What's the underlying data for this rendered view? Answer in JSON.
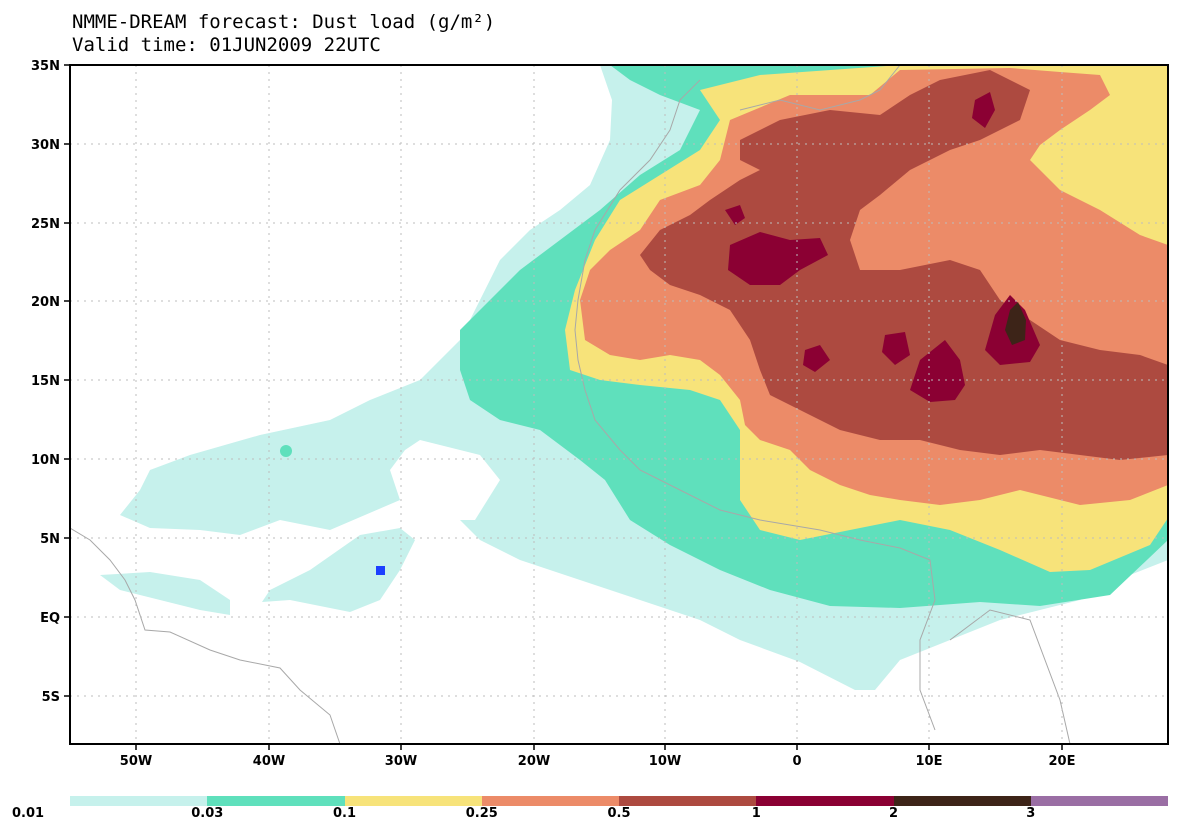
{
  "title": {
    "line1": "NMME-DREAM forecast: Dust load (g/m²)",
    "line2": "Valid time: 01JUN2009 22UTC"
  },
  "axes": {
    "lat_labels": [
      "35N",
      "30N",
      "25N",
      "20N",
      "15N",
      "10N",
      "5N",
      "EQ",
      "5S"
    ],
    "lon_labels": [
      "50W",
      "40W",
      "30W",
      "20W",
      "10W",
      "0",
      "10E",
      "20E"
    ]
  },
  "colorbar": {
    "colors": [
      "#c6f1ec",
      "#5fe0bc",
      "#f7e37a",
      "#ec8b68",
      "#ad4a40",
      "#8b0033",
      "#3d2418",
      "#9a6ea4"
    ],
    "labels": [
      "0.01",
      "0.03",
      "0.1",
      "0.25",
      "0.5",
      "1",
      "2",
      "3"
    ]
  },
  "marker": {
    "name": "station",
    "color": "#1c3fff"
  }
}
